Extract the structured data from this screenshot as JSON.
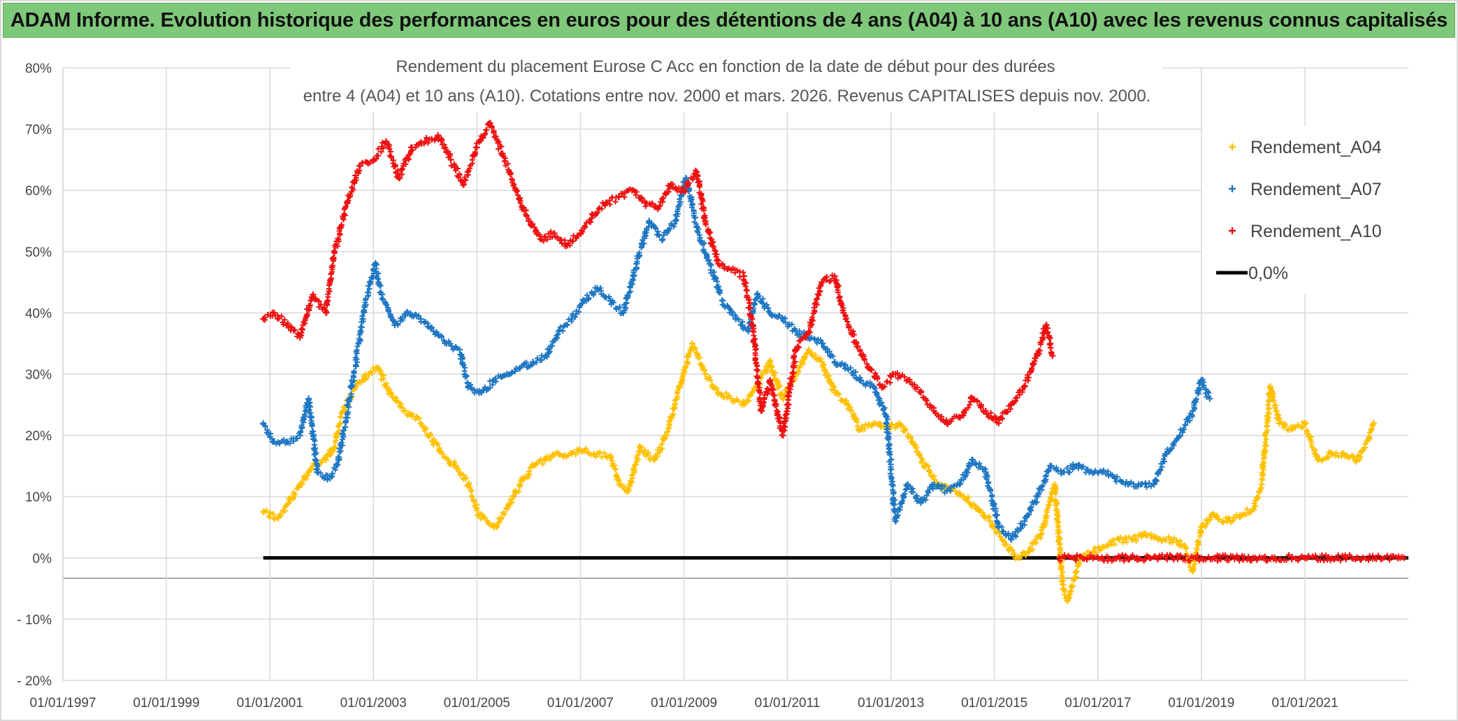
{
  "banner": {
    "title": "ADAM Informe. Evolution historique des performances en euros pour des détentions de 4 ans (A04) à 10 ans (A10) avec les revenus connus capitalisés"
  },
  "chart_data": {
    "type": "scatter",
    "title_line1": "Rendement du placement Eurose C Acc en fonction de la date de début pour des durées",
    "title_line2": "entre 4 (A04) et 10 ans (A10). Cotations entre nov. 2000 et mars. 2026. Revenus CAPITALISES depuis nov. 2000.",
    "x_tick_labels": [
      "01/01/1997",
      "01/01/1999",
      "01/01/2001",
      "01/01/2003",
      "01/01/2005",
      "01/01/2007",
      "01/01/2009",
      "01/01/2011",
      "01/01/2013",
      "01/01/2015",
      "01/01/2017",
      "01/01/2019",
      "01/01/2021"
    ],
    "xlim": [
      "1997-01-01",
      "2023-01-01"
    ],
    "y_tick_labels": [
      "80%",
      "70%",
      "60%",
      "50%",
      "40%",
      "30%",
      "20%",
      "10%",
      "0%",
      "- 10%",
      "- 20%"
    ],
    "ylim": [
      -20,
      80
    ],
    "grid": true,
    "legend_position": "top-right",
    "series": [
      {
        "name": "Rendement_A04",
        "color": "#ffc000",
        "marker": "plus",
        "points": [
          [
            "2000-11-15",
            7.5
          ],
          [
            "2001-03-01",
            6.5
          ],
          [
            "2001-05-15",
            9
          ],
          [
            "2001-08-01",
            12
          ],
          [
            "2001-11-01",
            15
          ],
          [
            "2002-02-01",
            16
          ],
          [
            "2002-04-01",
            18
          ],
          [
            "2002-06-01",
            24
          ],
          [
            "2002-09-01",
            28
          ],
          [
            "2002-12-01",
            30
          ],
          [
            "2003-02-01",
            31
          ],
          [
            "2003-05-01",
            27
          ],
          [
            "2003-08-01",
            24
          ],
          [
            "2003-11-01",
            23
          ],
          [
            "2004-02-01",
            20
          ],
          [
            "2004-05-01",
            17
          ],
          [
            "2004-08-01",
            15
          ],
          [
            "2004-11-01",
            12
          ],
          [
            "2005-01-15",
            7
          ],
          [
            "2005-05-01",
            5
          ],
          [
            "2005-08-01",
            8
          ],
          [
            "2005-11-01",
            12
          ],
          [
            "2006-02-01",
            15
          ],
          [
            "2006-05-01",
            16
          ],
          [
            "2006-08-01",
            17
          ],
          [
            "2006-11-01",
            17
          ],
          [
            "2007-02-01",
            17.5
          ],
          [
            "2007-05-01",
            17
          ],
          [
            "2007-08-01",
            16.5
          ],
          [
            "2007-10-01",
            12
          ],
          [
            "2007-12-01",
            11
          ],
          [
            "2008-03-01",
            18
          ],
          [
            "2008-06-01",
            16
          ],
          [
            "2008-09-01",
            20
          ],
          [
            "2008-12-01",
            28
          ],
          [
            "2009-03-01",
            35
          ],
          [
            "2009-06-01",
            30
          ],
          [
            "2009-09-01",
            27
          ],
          [
            "2009-12-01",
            26
          ],
          [
            "2010-03-01",
            25
          ],
          [
            "2010-06-01",
            28
          ],
          [
            "2010-09-01",
            32
          ],
          [
            "2010-12-01",
            26
          ],
          [
            "2011-03-01",
            30
          ],
          [
            "2011-06-01",
            34
          ],
          [
            "2011-09-01",
            32
          ],
          [
            "2011-12-01",
            27
          ],
          [
            "2012-03-01",
            25
          ],
          [
            "2012-06-01",
            21
          ],
          [
            "2012-09-01",
            22
          ],
          [
            "2012-12-01",
            21
          ],
          [
            "2013-03-01",
            22
          ],
          [
            "2013-06-01",
            19
          ],
          [
            "2013-09-01",
            15
          ],
          [
            "2013-12-01",
            12
          ],
          [
            "2014-03-01",
            11
          ],
          [
            "2014-06-01",
            10
          ],
          [
            "2014-09-01",
            8
          ],
          [
            "2014-12-01",
            6
          ],
          [
            "2015-03-01",
            3
          ],
          [
            "2015-06-01",
            0
          ],
          [
            "2015-09-01",
            1
          ],
          [
            "2015-12-01",
            4
          ],
          [
            "2016-03-01",
            12
          ],
          [
            "2016-05-01",
            -5
          ],
          [
            "2016-06-01",
            -7
          ],
          [
            "2016-09-01",
            0
          ],
          [
            "2016-12-01",
            1
          ],
          [
            "2017-03-01",
            2
          ],
          [
            "2017-06-01",
            3
          ],
          [
            "2017-09-01",
            3
          ],
          [
            "2017-12-01",
            4
          ],
          [
            "2018-03-01",
            3
          ],
          [
            "2018-06-01",
            3
          ],
          [
            "2018-09-01",
            2
          ],
          [
            "2018-11-01",
            -2
          ],
          [
            "2019-01-01",
            5
          ],
          [
            "2019-04-01",
            7
          ],
          [
            "2019-07-01",
            6
          ],
          [
            "2019-10-01",
            7
          ],
          [
            "2020-01-01",
            8
          ],
          [
            "2020-03-01",
            12
          ],
          [
            "2020-05-01",
            28
          ],
          [
            "2020-07-01",
            22
          ],
          [
            "2020-10-01",
            21
          ],
          [
            "2021-01-01",
            22
          ],
          [
            "2021-04-01",
            16
          ],
          [
            "2021-07-01",
            17
          ],
          [
            "2021-10-01",
            17
          ],
          [
            "2022-01-01",
            16
          ],
          [
            "2022-03-01",
            18
          ],
          [
            "2022-05-01",
            22
          ]
        ]
      },
      {
        "name": "Rendement_A07",
        "color": "#1f77c2",
        "marker": "plus",
        "points": [
          [
            "2000-11-15",
            22
          ],
          [
            "2001-02-01",
            19
          ],
          [
            "2001-05-01",
            19
          ],
          [
            "2001-08-01",
            20
          ],
          [
            "2001-10-01",
            26
          ],
          [
            "2001-12-01",
            14
          ],
          [
            "2002-03-01",
            13
          ],
          [
            "2002-05-01",
            16
          ],
          [
            "2002-08-01",
            28
          ],
          [
            "2002-11-01",
            41
          ],
          [
            "2003-01-15",
            48
          ],
          [
            "2003-03-01",
            43
          ],
          [
            "2003-06-01",
            38
          ],
          [
            "2003-09-01",
            40
          ],
          [
            "2003-12-01",
            39
          ],
          [
            "2004-03-01",
            37
          ],
          [
            "2004-06-01",
            35
          ],
          [
            "2004-09-01",
            34
          ],
          [
            "2004-11-01",
            28
          ],
          [
            "2005-02-01",
            27
          ],
          [
            "2005-05-01",
            29
          ],
          [
            "2005-08-01",
            30
          ],
          [
            "2005-11-01",
            31
          ],
          [
            "2006-02-01",
            32
          ],
          [
            "2006-05-01",
            33
          ],
          [
            "2006-08-01",
            37
          ],
          [
            "2006-11-01",
            39
          ],
          [
            "2007-02-01",
            42
          ],
          [
            "2007-05-01",
            44
          ],
          [
            "2007-08-01",
            42
          ],
          [
            "2007-11-01",
            40
          ],
          [
            "2008-02-01",
            48
          ],
          [
            "2008-05-01",
            55
          ],
          [
            "2008-08-01",
            52
          ],
          [
            "2008-11-01",
            55
          ],
          [
            "2009-01-15",
            62
          ],
          [
            "2009-04-01",
            54
          ],
          [
            "2009-07-01",
            48
          ],
          [
            "2009-10-01",
            42
          ],
          [
            "2010-01-01",
            39
          ],
          [
            "2010-04-01",
            37
          ],
          [
            "2010-06-01",
            43
          ],
          [
            "2010-09-01",
            40
          ],
          [
            "2010-12-01",
            39
          ],
          [
            "2011-03-01",
            37
          ],
          [
            "2011-06-01",
            36
          ],
          [
            "2011-09-01",
            35
          ],
          [
            "2011-12-01",
            32
          ],
          [
            "2012-03-01",
            31
          ],
          [
            "2012-06-01",
            29
          ],
          [
            "2012-09-01",
            28
          ],
          [
            "2012-12-01",
            23
          ],
          [
            "2013-02-01",
            6
          ],
          [
            "2013-05-01",
            12
          ],
          [
            "2013-08-01",
            9
          ],
          [
            "2013-11-01",
            12
          ],
          [
            "2014-02-01",
            11
          ],
          [
            "2014-05-01",
            12
          ],
          [
            "2014-08-01",
            16
          ],
          [
            "2014-11-01",
            14
          ],
          [
            "2015-02-01",
            5
          ],
          [
            "2015-05-01",
            3
          ],
          [
            "2015-08-01",
            6
          ],
          [
            "2015-11-01",
            10
          ],
          [
            "2016-02-01",
            15
          ],
          [
            "2016-05-01",
            14
          ],
          [
            "2016-08-01",
            15
          ],
          [
            "2016-11-01",
            14
          ],
          [
            "2017-02-01",
            14
          ],
          [
            "2017-05-01",
            13
          ],
          [
            "2017-08-01",
            12
          ],
          [
            "2017-11-01",
            12
          ],
          [
            "2018-02-01",
            12
          ],
          [
            "2018-05-01",
            17
          ],
          [
            "2018-08-01",
            20
          ],
          [
            "2018-11-01",
            24
          ],
          [
            "2019-01-01",
            29
          ],
          [
            "2019-03-01",
            26
          ]
        ]
      },
      {
        "name": "Rendement_A10",
        "color": "#ee1111",
        "marker": "plus",
        "points": [
          [
            "2000-11-15",
            39
          ],
          [
            "2001-02-01",
            40
          ],
          [
            "2001-05-01",
            38
          ],
          [
            "2001-08-01",
            36
          ],
          [
            "2001-11-01",
            43
          ],
          [
            "2002-02-01",
            40
          ],
          [
            "2002-04-01",
            50
          ],
          [
            "2002-07-01",
            58
          ],
          [
            "2002-10-01",
            64
          ],
          [
            "2003-01-01",
            65
          ],
          [
            "2003-04-01",
            68
          ],
          [
            "2003-07-01",
            62
          ],
          [
            "2003-10-01",
            67
          ],
          [
            "2004-01-01",
            68
          ],
          [
            "2004-04-01",
            69
          ],
          [
            "2004-07-01",
            65
          ],
          [
            "2004-10-01",
            61
          ],
          [
            "2005-01-01",
            67
          ],
          [
            "2005-04-01",
            71
          ],
          [
            "2005-07-01",
            66
          ],
          [
            "2005-10-01",
            60
          ],
          [
            "2006-01-01",
            55
          ],
          [
            "2006-04-01",
            52
          ],
          [
            "2006-07-01",
            53
          ],
          [
            "2006-10-01",
            51
          ],
          [
            "2007-01-01",
            53
          ],
          [
            "2007-04-01",
            56
          ],
          [
            "2007-07-01",
            58
          ],
          [
            "2007-10-01",
            59
          ],
          [
            "2008-01-01",
            60
          ],
          [
            "2008-04-01",
            58
          ],
          [
            "2008-07-01",
            57
          ],
          [
            "2008-10-01",
            61
          ],
          [
            "2009-01-01",
            60
          ],
          [
            "2009-04-01",
            63
          ],
          [
            "2009-06-01",
            55
          ],
          [
            "2009-09-01",
            48
          ],
          [
            "2009-12-01",
            47
          ],
          [
            "2010-03-01",
            46
          ],
          [
            "2010-05-01",
            38
          ],
          [
            "2010-07-01",
            24
          ],
          [
            "2010-09-01",
            29
          ],
          [
            "2010-12-01",
            20
          ],
          [
            "2011-03-01",
            34
          ],
          [
            "2011-06-01",
            37
          ],
          [
            "2011-09-01",
            45
          ],
          [
            "2011-12-01",
            46
          ],
          [
            "2012-02-01",
            40
          ],
          [
            "2012-05-01",
            35
          ],
          [
            "2012-08-01",
            31
          ],
          [
            "2012-11-01",
            28
          ],
          [
            "2013-02-01",
            30
          ],
          [
            "2013-05-01",
            29
          ],
          [
            "2013-08-01",
            27
          ],
          [
            "2013-11-01",
            24
          ],
          [
            "2014-02-01",
            22
          ],
          [
            "2014-05-01",
            23
          ],
          [
            "2014-08-01",
            26
          ],
          [
            "2014-11-01",
            24
          ],
          [
            "2015-02-01",
            22
          ],
          [
            "2015-05-01",
            25
          ],
          [
            "2015-08-01",
            28
          ],
          [
            "2015-11-01",
            33
          ],
          [
            "2016-01-01",
            38
          ],
          [
            "2016-02-15",
            33
          ],
          [
            "2016-04-01",
            0
          ],
          [
            "2017-01-01",
            0
          ],
          [
            "2018-01-01",
            0
          ],
          [
            "2019-01-01",
            0
          ],
          [
            "2020-01-01",
            0
          ],
          [
            "2021-01-01",
            0
          ],
          [
            "2022-01-01",
            0
          ],
          [
            "2022-12-01",
            0
          ]
        ]
      },
      {
        "name": "0,0%",
        "color": "#000000",
        "marker": "line",
        "points": [
          [
            "2000-11-15",
            0
          ],
          [
            "2023-01-01",
            0
          ]
        ]
      }
    ]
  }
}
